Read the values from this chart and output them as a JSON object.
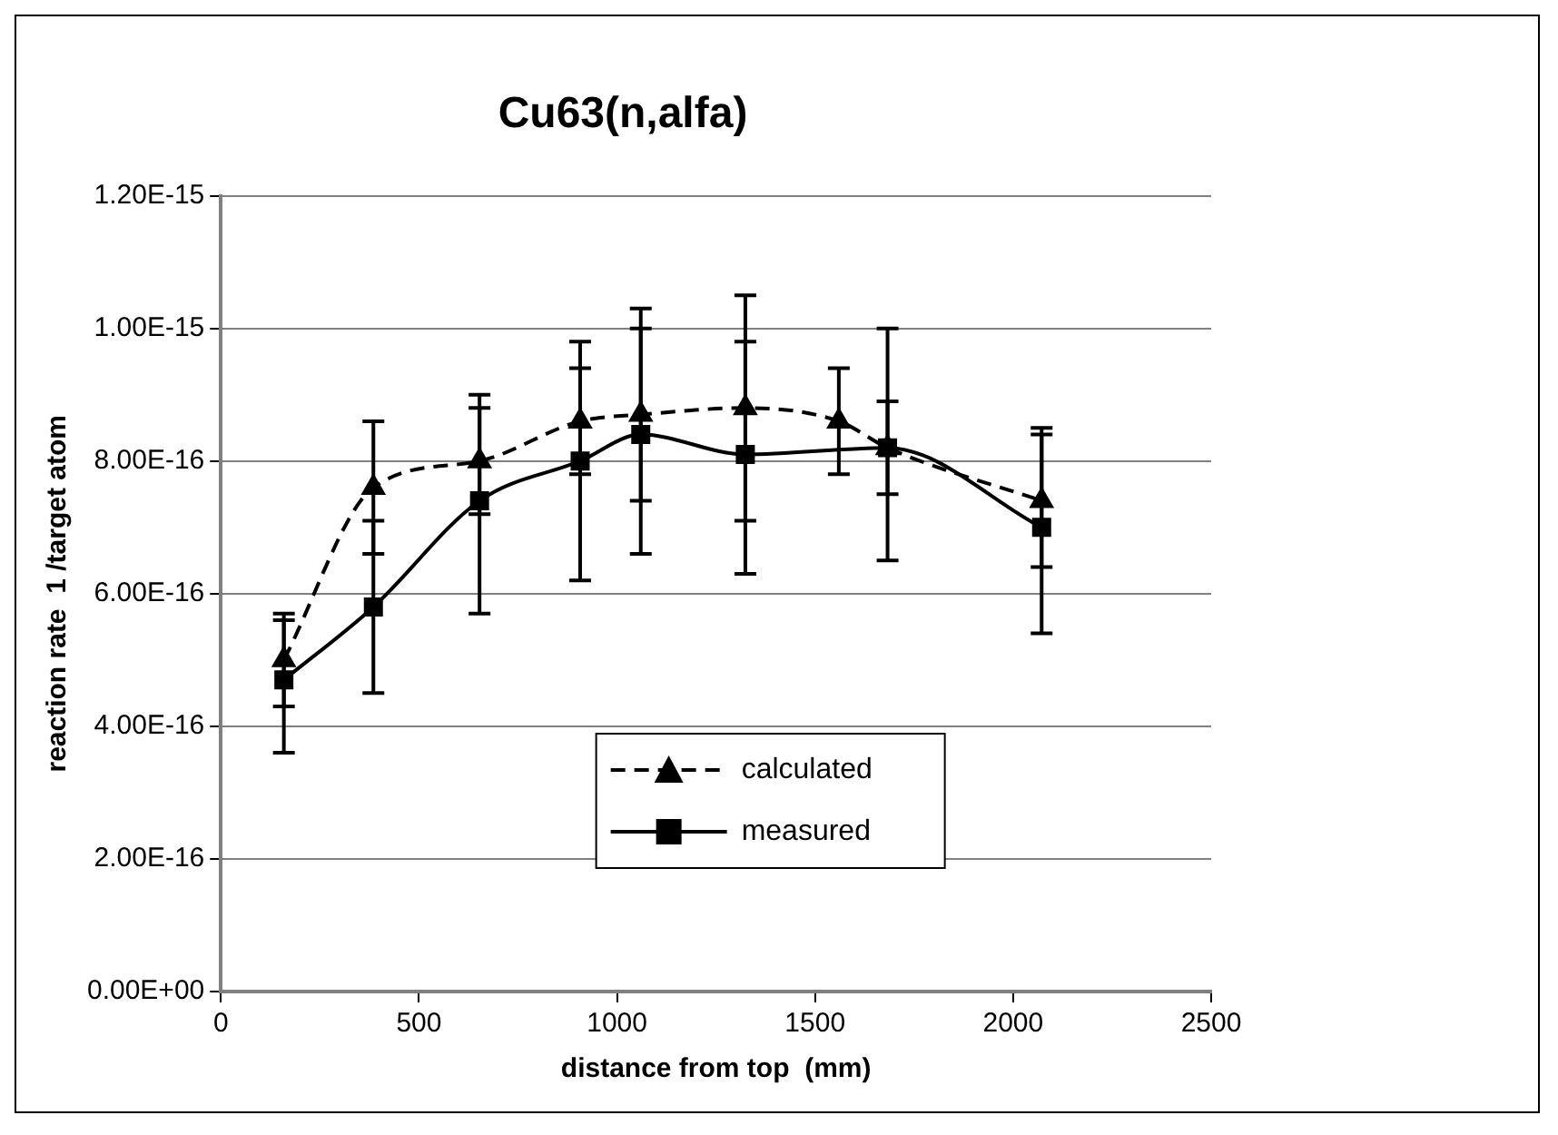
{
  "chart_data": {
    "type": "line",
    "title": "Cu63(n,alfa)",
    "xlabel": "distance from top  (mm)",
    "ylabel": "reaction rate  1 /target atom",
    "xlim": [
      0,
      2500
    ],
    "xticks": [
      0,
      500,
      1000,
      1500,
      2000,
      2500
    ],
    "ylim": [
      0,
      1.2e-15
    ],
    "yticks": [
      {
        "value": 0,
        "label": "0.00E+00"
      },
      {
        "value": 2e-16,
        "label": "2.00E-16"
      },
      {
        "value": 4e-16,
        "label": "4.00E-16"
      },
      {
        "value": 6e-16,
        "label": "6.00E-16"
      },
      {
        "value": 8e-16,
        "label": "8.00E-16"
      },
      {
        "value": 1e-15,
        "label": "1.00E-15"
      },
      {
        "value": 1.2e-15,
        "label": "1.20E-15"
      }
    ],
    "grid": "y",
    "legend": "bottom",
    "series": [
      {
        "name": "calculated",
        "color": "#000000",
        "marker": "triangle",
        "line_style": "dashed",
        "x": [
          159,
          385,
          653,
          907,
          1060,
          1324,
          1560,
          1683,
          2072
        ],
        "values": [
          5e-16,
          7.6e-16,
          8e-16,
          8.6e-16,
          8.7e-16,
          8.8e-16,
          8.6e-16,
          8.2e-16,
          7.4e-16
        ],
        "errors": [
          7e-17,
          1e-16,
          8e-17,
          8e-17,
          1.3e-16,
          [
            7.1e-16,
            1.05e-15
          ],
          8e-17,
          7e-17,
          1e-16
        ]
      },
      {
        "name": "measured",
        "color": "#000000",
        "marker": "square",
        "line_style": "solid",
        "x": [
          159,
          385,
          653,
          907,
          1060,
          1324,
          1683,
          2072
        ],
        "values": [
          4.7e-16,
          5.8e-16,
          7.4e-16,
          8e-16,
          8.4e-16,
          8.1e-16,
          8.2e-16,
          7e-16
        ],
        "errors": [
          [
            3.6e-16,
            5.6e-16
          ],
          [
            4.5e-16,
            7.1e-16
          ],
          [
            5.7e-16,
            9e-16
          ],
          [
            6.2e-16,
            9.8e-16
          ],
          [
            6.6e-16,
            1.03e-15
          ],
          [
            6.3e-16,
            9.8e-16
          ],
          [
            6.5e-16,
            1e-15
          ],
          [
            5.4e-16,
            8.5e-16
          ]
        ]
      }
    ]
  }
}
